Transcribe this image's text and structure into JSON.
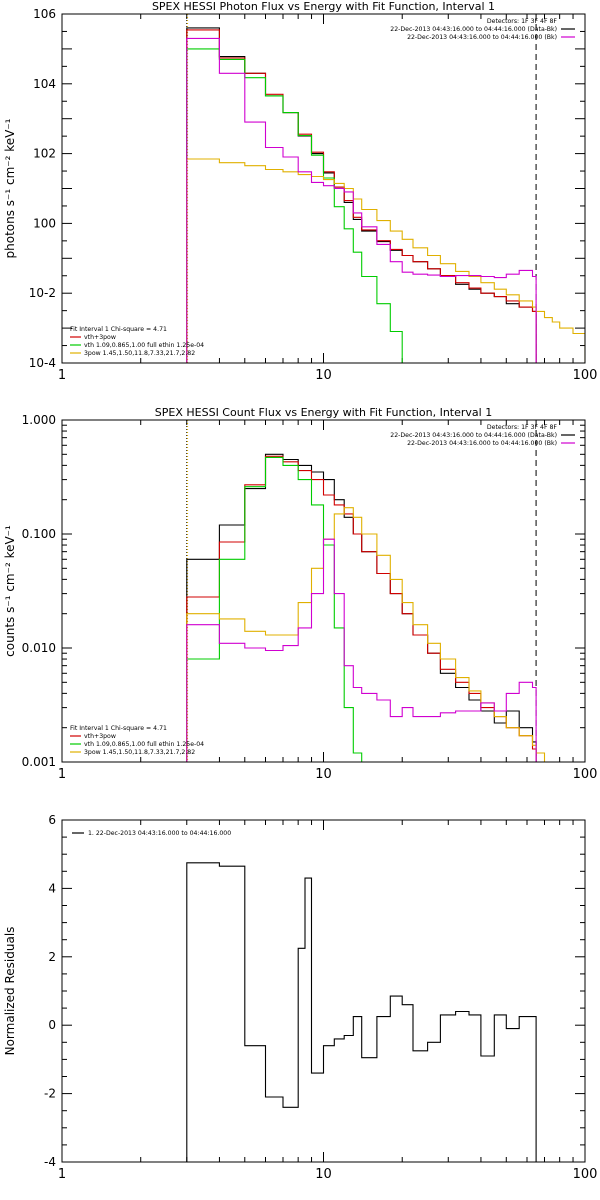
{
  "chart_data": [
    {
      "type": "line",
      "title": "SPEX HESSI Photon Flux vs Energy with Fit Function, Interval 1",
      "xlabel": "",
      "ylabel": "photons s⁻¹ cm⁻² keV⁻¹",
      "xscale": "log",
      "yscale": "log",
      "xlim": [
        1,
        100
      ],
      "ylim": [
        0.0001,
        1000000
      ],
      "x_ticks": [
        "1",
        "10",
        "100"
      ],
      "y_ticks": [
        "10-4",
        "10-2",
        "100",
        "102",
        "104",
        "106"
      ],
      "legend_top": [
        "Detectors: 1F 3F 4F 8F",
        "22-Dec-2013 04:43:16.000 to 04:44:16.000 (Data-Bk)",
        "22-Dec-2013 04:43:16.000 to 04:44:16.000 (Bk)"
      ],
      "legend_top_colors": [
        "#000000",
        "#000000",
        "#d000d0"
      ],
      "legend_bottom": [
        "Fit Interval 1    Chi-square = 4.71",
        "vth+3pow",
        "vth 1.09,0.865,1.00  full ethin 1.25e-04",
        "3pow 1.45,1.50,11.8,7.33,21.7,2.82"
      ],
      "legend_bottom_colors": [
        "#000000",
        "#d00000",
        "#00cc00",
        "#e0b000"
      ],
      "vlines": [
        {
          "x": 3,
          "style": "dotted",
          "color": "#000000"
        },
        {
          "x": 3,
          "style": "dotted",
          "color": "#e0b000"
        },
        {
          "x": 65,
          "style": "dashed",
          "color": "#000000"
        }
      ],
      "edges": [
        3,
        4,
        5,
        6,
        7,
        8,
        9,
        10,
        11,
        12,
        13,
        14,
        16,
        18,
        20,
        22,
        25,
        28,
        32,
        36,
        40,
        45,
        50,
        56,
        63,
        65,
        70,
        75,
        80,
        90,
        100
      ],
      "series": [
        {
          "name": "22-Dec-2013 04:43:16.000 to 04:44:16.000 (Data-Bk)",
          "color": "#000000",
          "values": [
            400000,
            60000,
            20000,
            4500,
            1500,
            320,
            100,
            28,
            11,
            4,
            1.3,
            0.6,
            0.3,
            0.17,
            0.12,
            0.08,
            0.05,
            0.03,
            0.018,
            0.013,
            0.01,
            0.008,
            0.005,
            0.004,
            0.003,
            null,
            null,
            null,
            null,
            null
          ]
        },
        {
          "name": "vth+3pow",
          "color": "#d00000",
          "values": [
            350000,
            55000,
            20000,
            5000,
            1500,
            360,
            110,
            30,
            11,
            4.5,
            1.5,
            0.65,
            0.32,
            0.18,
            0.12,
            0.08,
            0.05,
            0.032,
            0.02,
            0.014,
            0.01,
            0.008,
            0.006,
            0.004,
            0.003,
            null,
            null,
            null,
            null,
            null
          ]
        },
        {
          "name": "vth 1.09,0.865,1.00  full ethin 1.25e-04",
          "color": "#00cc00",
          "values": [
            100000,
            50000,
            15000,
            4500,
            1500,
            330,
            90,
            20,
            3,
            0.7,
            0.15,
            0.03,
            0.005,
            0.0008,
            5e-05,
            null,
            null,
            null,
            null,
            null,
            null,
            null,
            null,
            null,
            null,
            null,
            null,
            null,
            null,
            null
          ]
        },
        {
          "name": "3pow 1.45,1.50,11.8,7.33,21.7,2.82",
          "color": "#e0b000",
          "values": [
            70,
            55,
            45,
            35,
            30,
            25,
            22,
            18,
            14,
            10,
            5,
            2.5,
            1.2,
            0.6,
            0.35,
            0.2,
            0.12,
            0.07,
            0.042,
            0.03,
            0.02,
            0.013,
            0.009,
            0.006,
            0.004,
            0.003,
            0.002,
            0.0015,
            0.001,
            0.0007
          ]
        },
        {
          "name": "22-Dec-2013 04:43:16.000 to 04:44:16.000 (Bk)",
          "color": "#d000d0",
          "values": [
            200000,
            20000,
            800,
            150,
            80,
            30,
            15,
            12,
            10,
            8,
            2,
            0.8,
            0.25,
            0.08,
            0.04,
            0.035,
            0.033,
            0.03,
            0.032,
            0.032,
            0.03,
            0.028,
            0.035,
            0.045,
            0.03,
            null,
            null,
            null,
            null,
            null
          ]
        }
      ]
    },
    {
      "type": "line",
      "title": "SPEX HESSI Count Flux vs Energy with Fit Function, Interval 1",
      "xlabel": "",
      "ylabel": "counts s⁻¹ cm⁻² keV⁻¹",
      "xscale": "log",
      "yscale": "log",
      "xlim": [
        1,
        100
      ],
      "ylim": [
        0.001,
        1
      ],
      "x_ticks": [
        "1",
        "10",
        "100"
      ],
      "y_ticks": [
        "0.001",
        "0.010",
        "0.100",
        "1.000"
      ],
      "legend_top": [
        "Detectors: 1F 3F 4F 8F",
        "22-Dec-2013 04:43:16.000 to 04:44:16.000 (Data-Bk)",
        "22-Dec-2013 04:43:16.000 to 04:44:16.000 (Bk)"
      ],
      "legend_top_colors": [
        "#000000",
        "#000000",
        "#d000d0"
      ],
      "legend_bottom": [
        "Fit Interval 1    Chi-square = 4.71",
        "vth+3pow",
        "vth 1.09,0.865,1.00  full ethin 1.25e-04",
        "3pow 1.45,1.50,11.8,7.33,21.7,2.82"
      ],
      "legend_bottom_colors": [
        "#000000",
        "#d00000",
        "#00cc00",
        "#e0b000"
      ],
      "vlines": [
        {
          "x": 3,
          "style": "dotted",
          "color": "#000000"
        },
        {
          "x": 3,
          "style": "dotted",
          "color": "#e0b000"
        },
        {
          "x": 65,
          "style": "dashed",
          "color": "#000000"
        }
      ],
      "edges": [
        3,
        4,
        5,
        6,
        7,
        8,
        9,
        10,
        11,
        12,
        13,
        14,
        16,
        18,
        20,
        22,
        25,
        28,
        32,
        36,
        40,
        45,
        50,
        56,
        63,
        65,
        70,
        75,
        80,
        90,
        100
      ],
      "series": [
        {
          "name": "22-Dec-2013 04:43:16.000 to 04:44:16.000 (Data-Bk)",
          "color": "#000000",
          "values": [
            0.06,
            0.12,
            0.25,
            0.5,
            0.45,
            0.4,
            0.35,
            0.3,
            0.2,
            0.14,
            0.1,
            0.07,
            0.045,
            0.03,
            0.02,
            0.013,
            0.009,
            0.006,
            0.0045,
            0.0035,
            0.0028,
            0.0022,
            0.0028,
            0.002,
            0.0015,
            null,
            null,
            null,
            null,
            null
          ]
        },
        {
          "name": "vth+3pow",
          "color": "#d00000",
          "values": [
            0.028,
            0.085,
            0.27,
            0.48,
            0.43,
            0.36,
            0.3,
            0.22,
            0.18,
            0.15,
            0.1,
            0.07,
            0.045,
            0.03,
            0.02,
            0.013,
            0.009,
            0.0065,
            0.005,
            0.004,
            0.003,
            0.0025,
            0.002,
            0.0017,
            0.0013,
            null,
            null,
            null,
            null,
            null
          ]
        },
        {
          "name": "vth 1.09,0.865,1.00  full ethin 1.25e-04",
          "color": "#00cc00",
          "values": [
            0.008,
            0.06,
            0.26,
            0.47,
            0.4,
            0.3,
            0.18,
            0.08,
            0.015,
            0.003,
            0.0012,
            0.0008,
            null,
            null,
            null,
            null,
            null,
            null,
            null,
            null,
            null,
            null,
            null,
            null,
            null,
            null,
            null,
            null,
            null,
            null
          ]
        },
        {
          "name": "3pow 1.45,1.50,11.8,7.33,21.7,2.82",
          "color": "#e0b000",
          "values": [
            0.02,
            0.018,
            0.014,
            0.013,
            0.013,
            0.025,
            0.05,
            0.09,
            0.15,
            0.17,
            0.14,
            0.1,
            0.065,
            0.04,
            0.025,
            0.016,
            0.011,
            0.008,
            0.0055,
            0.0042,
            0.0033,
            0.0025,
            0.002,
            0.0017,
            0.0014,
            0.0012,
            0.001,
            null,
            null,
            null
          ]
        },
        {
          "name": "22-Dec-2013 04:43:16.000 to 04:44:16.000 (Bk)",
          "color": "#d000d0",
          "values": [
            0.016,
            0.011,
            0.01,
            0.0095,
            0.0105,
            0.015,
            0.03,
            0.09,
            0.03,
            0.007,
            0.0045,
            0.004,
            0.0035,
            0.0025,
            0.003,
            0.0025,
            0.0025,
            0.0027,
            0.0028,
            0.0028,
            0.0033,
            0.0028,
            0.004,
            0.005,
            0.0045,
            null,
            null,
            null,
            null,
            null
          ]
        }
      ]
    },
    {
      "type": "line",
      "title": "",
      "xlabel": "",
      "ylabel": "Normalized Residuals",
      "xscale": "log",
      "yscale": "linear",
      "xlim": [
        1,
        100
      ],
      "ylim": [
        -4,
        6
      ],
      "x_ticks": [
        "1",
        "10",
        "100"
      ],
      "y_ticks": [
        "-4",
        "-2",
        "0",
        "2",
        "4",
        "6"
      ],
      "legend_top": [
        "1. 22-Dec-2013 04:43:16.000 to 04:44:16.000"
      ],
      "legend_top_colors": [
        "#000000"
      ],
      "legend_bottom": [],
      "legend_bottom_colors": [],
      "vlines": [],
      "edges": [
        3,
        4,
        5,
        6,
        7,
        8,
        8.5,
        9,
        10,
        11,
        12,
        13,
        14,
        16,
        18,
        20,
        22,
        25,
        28,
        32,
        36,
        40,
        45,
        50,
        56,
        65
      ],
      "series": [
        {
          "name": "1. 22-Dec-2013 04:43:16.000 to 04:44:16.000",
          "color": "#000000",
          "values": [
            4.75,
            4.65,
            -0.6,
            -2.1,
            -2.4,
            2.25,
            4.3,
            -1.4,
            -0.6,
            -0.4,
            -0.3,
            0.25,
            -0.95,
            0.25,
            0.85,
            0.6,
            -0.75,
            -0.5,
            0.3,
            0.4,
            0.3,
            -0.9,
            0.3,
            -0.1,
            0.25
          ]
        }
      ]
    }
  ]
}
